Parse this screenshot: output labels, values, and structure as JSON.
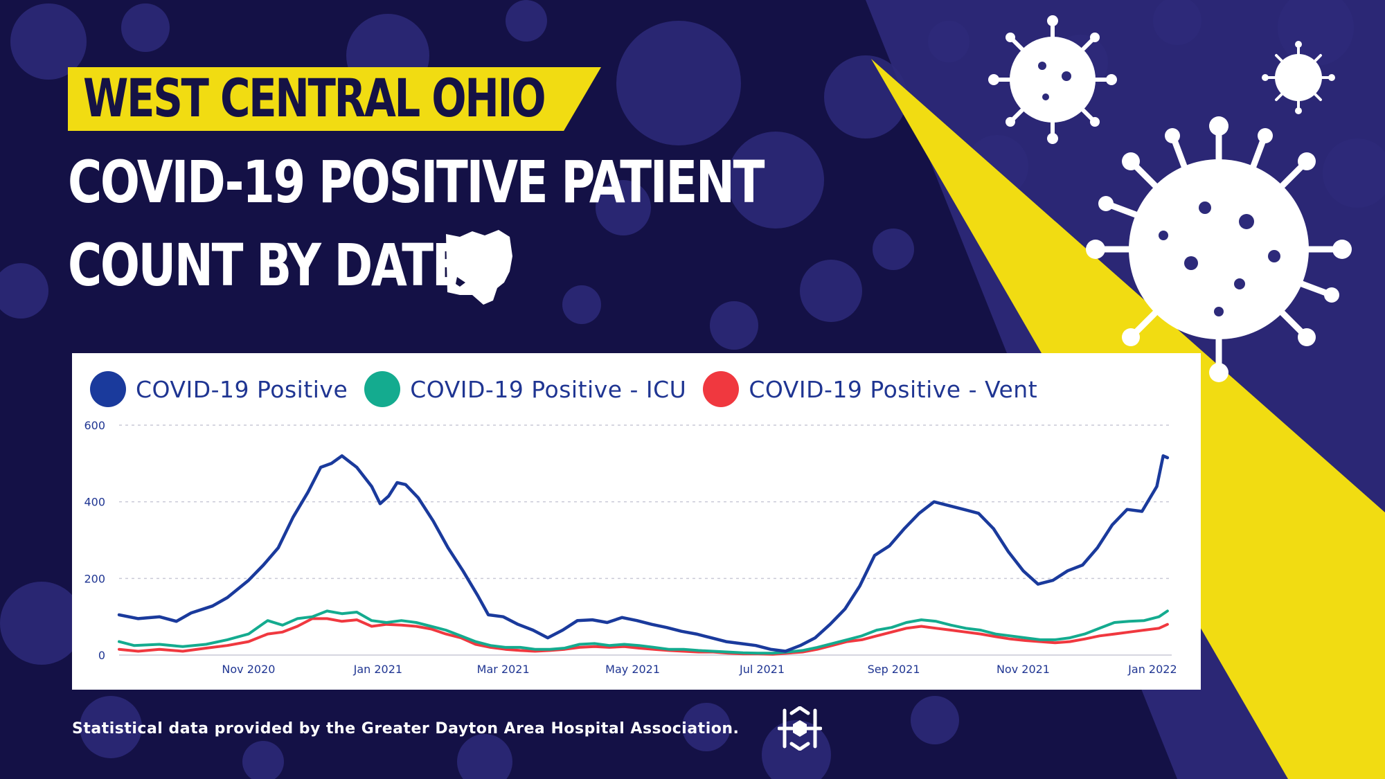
{
  "header": {
    "region": "WEST CENTRAL OHIO",
    "title_line1": "COVID-19 POSITIVE PATIENT",
    "title_line2": "COUNT BY DATE",
    "state_icon": "ohio-state-icon"
  },
  "footer": {
    "source": "Statistical data provided by the Greater Dayton Area Hospital Association.",
    "logo_icon": "hospital-association-logo-icon"
  },
  "colors": {
    "background": "#141146",
    "background_accent": "#2d2a7a",
    "accent_yellow": "#f1dc12",
    "positive": "#1a3a9c",
    "icu": "#14ab8f",
    "vent": "#f0383f"
  },
  "chart_data": {
    "type": "line",
    "legend_position": "top-left",
    "grid": true,
    "ylim": [
      0,
      600
    ],
    "yticks": [
      0,
      200,
      400,
      600
    ],
    "xlim": [
      "2020-09-01",
      "2022-01-10"
    ],
    "xticks": [
      {
        "date": "2020-11-01",
        "label": "Nov 2020"
      },
      {
        "date": "2021-01-01",
        "label": "Jan 2021"
      },
      {
        "date": "2021-03-01",
        "label": "Mar 2021"
      },
      {
        "date": "2021-05-01",
        "label": "May 2021"
      },
      {
        "date": "2021-07-01",
        "label": "Jul 2021"
      },
      {
        "date": "2021-09-01",
        "label": "Sep 2021"
      },
      {
        "date": "2021-11-01",
        "label": "Nov 2021"
      },
      {
        "date": "2022-01-01",
        "label": "Jan 2022"
      }
    ],
    "series": [
      {
        "name": "COVID-19 Positive",
        "color": "#1a3a9c",
        "points": [
          [
            "2020-09-01",
            105
          ],
          [
            "2020-09-10",
            95
          ],
          [
            "2020-09-20",
            100
          ],
          [
            "2020-09-28",
            88
          ],
          [
            "2020-10-05",
            110
          ],
          [
            "2020-10-15",
            128
          ],
          [
            "2020-10-22",
            150
          ],
          [
            "2020-11-01",
            195
          ],
          [
            "2020-11-08",
            235
          ],
          [
            "2020-11-15",
            280
          ],
          [
            "2020-11-22",
            360
          ],
          [
            "2020-11-29",
            425
          ],
          [
            "2020-12-05",
            490
          ],
          [
            "2020-12-10",
            500
          ],
          [
            "2020-12-15",
            520
          ],
          [
            "2020-12-22",
            490
          ],
          [
            "2020-12-29",
            440
          ],
          [
            "2021-01-02",
            395
          ],
          [
            "2021-01-06",
            415
          ],
          [
            "2021-01-10",
            450
          ],
          [
            "2021-01-14",
            445
          ],
          [
            "2021-01-20",
            410
          ],
          [
            "2021-01-27",
            350
          ],
          [
            "2021-02-03",
            280
          ],
          [
            "2021-02-10",
            220
          ],
          [
            "2021-02-17",
            155
          ],
          [
            "2021-02-22",
            105
          ],
          [
            "2021-03-01",
            100
          ],
          [
            "2021-03-08",
            80
          ],
          [
            "2021-03-15",
            65
          ],
          [
            "2021-03-22",
            45
          ],
          [
            "2021-03-29",
            65
          ],
          [
            "2021-04-05",
            90
          ],
          [
            "2021-04-12",
            92
          ],
          [
            "2021-04-19",
            85
          ],
          [
            "2021-04-26",
            98
          ],
          [
            "2021-05-03",
            90
          ],
          [
            "2021-05-10",
            80
          ],
          [
            "2021-05-17",
            72
          ],
          [
            "2021-05-24",
            62
          ],
          [
            "2021-05-31",
            55
          ],
          [
            "2021-06-07",
            45
          ],
          [
            "2021-06-14",
            35
          ],
          [
            "2021-06-21",
            30
          ],
          [
            "2021-06-28",
            25
          ],
          [
            "2021-07-05",
            15
          ],
          [
            "2021-07-12",
            10
          ],
          [
            "2021-07-19",
            25
          ],
          [
            "2021-07-26",
            45
          ],
          [
            "2021-08-02",
            80
          ],
          [
            "2021-08-09",
            120
          ],
          [
            "2021-08-16",
            180
          ],
          [
            "2021-08-23",
            260
          ],
          [
            "2021-08-30",
            285
          ],
          [
            "2021-09-06",
            330
          ],
          [
            "2021-09-13",
            370
          ],
          [
            "2021-09-20",
            400
          ],
          [
            "2021-09-27",
            390
          ],
          [
            "2021-10-04",
            380
          ],
          [
            "2021-10-11",
            370
          ],
          [
            "2021-10-18",
            330
          ],
          [
            "2021-10-25",
            270
          ],
          [
            "2021-11-01",
            220
          ],
          [
            "2021-11-08",
            185
          ],
          [
            "2021-11-15",
            195
          ],
          [
            "2021-11-22",
            220
          ],
          [
            "2021-11-29",
            235
          ],
          [
            "2021-12-06",
            280
          ],
          [
            "2021-12-13",
            340
          ],
          [
            "2021-12-20",
            380
          ],
          [
            "2021-12-27",
            375
          ],
          [
            "2022-01-03",
            440
          ],
          [
            "2022-01-06",
            520
          ],
          [
            "2022-01-08",
            515
          ]
        ]
      },
      {
        "name": "COVID-19 Positive - ICU",
        "color": "#14ab8f",
        "points": [
          [
            "2020-09-01",
            35
          ],
          [
            "2020-09-08",
            25
          ],
          [
            "2020-09-20",
            28
          ],
          [
            "2020-10-01",
            22
          ],
          [
            "2020-10-12",
            28
          ],
          [
            "2020-10-22",
            40
          ],
          [
            "2020-11-01",
            55
          ],
          [
            "2020-11-10",
            90
          ],
          [
            "2020-11-17",
            78
          ],
          [
            "2020-11-24",
            95
          ],
          [
            "2020-12-01",
            100
          ],
          [
            "2020-12-08",
            115
          ],
          [
            "2020-12-15",
            108
          ],
          [
            "2020-12-22",
            112
          ],
          [
            "2020-12-29",
            90
          ],
          [
            "2021-01-05",
            85
          ],
          [
            "2021-01-12",
            90
          ],
          [
            "2021-01-19",
            85
          ],
          [
            "2021-01-26",
            75
          ],
          [
            "2021-02-02",
            65
          ],
          [
            "2021-02-09",
            50
          ],
          [
            "2021-02-16",
            35
          ],
          [
            "2021-02-23",
            25
          ],
          [
            "2021-03-02",
            20
          ],
          [
            "2021-03-09",
            20
          ],
          [
            "2021-03-16",
            15
          ],
          [
            "2021-03-23",
            15
          ],
          [
            "2021-03-30",
            18
          ],
          [
            "2021-04-06",
            28
          ],
          [
            "2021-04-13",
            30
          ],
          [
            "2021-04-20",
            25
          ],
          [
            "2021-04-27",
            28
          ],
          [
            "2021-05-04",
            25
          ],
          [
            "2021-05-11",
            20
          ],
          [
            "2021-05-18",
            15
          ],
          [
            "2021-05-25",
            15
          ],
          [
            "2021-06-01",
            12
          ],
          [
            "2021-06-08",
            10
          ],
          [
            "2021-06-15",
            8
          ],
          [
            "2021-06-22",
            6
          ],
          [
            "2021-06-29",
            5
          ],
          [
            "2021-07-06",
            5
          ],
          [
            "2021-07-13",
            8
          ],
          [
            "2021-07-20",
            12
          ],
          [
            "2021-07-27",
            20
          ],
          [
            "2021-08-03",
            30
          ],
          [
            "2021-08-10",
            40
          ],
          [
            "2021-08-17",
            50
          ],
          [
            "2021-08-24",
            65
          ],
          [
            "2021-08-31",
            72
          ],
          [
            "2021-09-07",
            85
          ],
          [
            "2021-09-14",
            92
          ],
          [
            "2021-09-21",
            88
          ],
          [
            "2021-09-28",
            78
          ],
          [
            "2021-10-05",
            70
          ],
          [
            "2021-10-12",
            65
          ],
          [
            "2021-10-19",
            55
          ],
          [
            "2021-10-26",
            50
          ],
          [
            "2021-11-02",
            45
          ],
          [
            "2021-11-09",
            40
          ],
          [
            "2021-11-16",
            40
          ],
          [
            "2021-11-23",
            45
          ],
          [
            "2021-11-30",
            55
          ],
          [
            "2021-12-07",
            70
          ],
          [
            "2021-12-14",
            85
          ],
          [
            "2021-12-21",
            88
          ],
          [
            "2021-12-28",
            90
          ],
          [
            "2022-01-04",
            100
          ],
          [
            "2022-01-08",
            115
          ]
        ]
      },
      {
        "name": "COVID-19 Positive - Vent",
        "color": "#f0383f",
        "points": [
          [
            "2020-09-01",
            15
          ],
          [
            "2020-09-10",
            10
          ],
          [
            "2020-09-20",
            15
          ],
          [
            "2020-10-01",
            10
          ],
          [
            "2020-10-12",
            18
          ],
          [
            "2020-10-22",
            25
          ],
          [
            "2020-11-01",
            35
          ],
          [
            "2020-11-10",
            55
          ],
          [
            "2020-11-17",
            60
          ],
          [
            "2020-11-24",
            75
          ],
          [
            "2020-12-01",
            95
          ],
          [
            "2020-12-08",
            95
          ],
          [
            "2020-12-15",
            88
          ],
          [
            "2020-12-22",
            92
          ],
          [
            "2020-12-29",
            75
          ],
          [
            "2021-01-05",
            80
          ],
          [
            "2021-01-12",
            78
          ],
          [
            "2021-01-19",
            75
          ],
          [
            "2021-01-26",
            68
          ],
          [
            "2021-02-02",
            55
          ],
          [
            "2021-02-09",
            45
          ],
          [
            "2021-02-16",
            28
          ],
          [
            "2021-02-23",
            20
          ],
          [
            "2021-03-02",
            15
          ],
          [
            "2021-03-09",
            12
          ],
          [
            "2021-03-16",
            10
          ],
          [
            "2021-03-23",
            12
          ],
          [
            "2021-03-30",
            15
          ],
          [
            "2021-04-06",
            20
          ],
          [
            "2021-04-13",
            22
          ],
          [
            "2021-04-20",
            20
          ],
          [
            "2021-04-27",
            22
          ],
          [
            "2021-05-04",
            18
          ],
          [
            "2021-05-11",
            15
          ],
          [
            "2021-05-18",
            12
          ],
          [
            "2021-05-25",
            10
          ],
          [
            "2021-06-01",
            8
          ],
          [
            "2021-06-08",
            8
          ],
          [
            "2021-06-15",
            5
          ],
          [
            "2021-06-22",
            3
          ],
          [
            "2021-06-29",
            3
          ],
          [
            "2021-07-06",
            2
          ],
          [
            "2021-07-13",
            5
          ],
          [
            "2021-07-20",
            8
          ],
          [
            "2021-07-27",
            15
          ],
          [
            "2021-08-03",
            25
          ],
          [
            "2021-08-10",
            35
          ],
          [
            "2021-08-17",
            40
          ],
          [
            "2021-08-24",
            50
          ],
          [
            "2021-08-31",
            60
          ],
          [
            "2021-09-07",
            70
          ],
          [
            "2021-09-14",
            75
          ],
          [
            "2021-09-21",
            70
          ],
          [
            "2021-09-28",
            65
          ],
          [
            "2021-10-05",
            60
          ],
          [
            "2021-10-12",
            55
          ],
          [
            "2021-10-19",
            48
          ],
          [
            "2021-10-26",
            42
          ],
          [
            "2021-11-02",
            38
          ],
          [
            "2021-11-09",
            35
          ],
          [
            "2021-11-16",
            32
          ],
          [
            "2021-11-23",
            35
          ],
          [
            "2021-11-30",
            42
          ],
          [
            "2021-12-07",
            50
          ],
          [
            "2021-12-14",
            55
          ],
          [
            "2021-12-21",
            60
          ],
          [
            "2021-12-28",
            65
          ],
          [
            "2022-01-04",
            70
          ],
          [
            "2022-01-08",
            80
          ]
        ]
      }
    ]
  }
}
